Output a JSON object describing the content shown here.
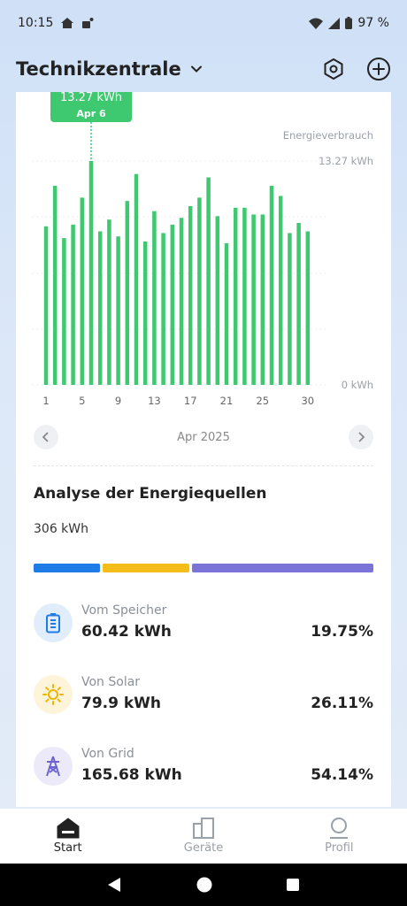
{
  "status_bar": {
    "time": "10:15",
    "battery": "97 %"
  },
  "header": {
    "title": "Technikzentrale"
  },
  "chart_data": {
    "type": "bar",
    "title": "",
    "series_label": "Energieverbrauch",
    "ylabel": "",
    "xlabel": "",
    "unit": "kWh",
    "x": [
      1,
      2,
      3,
      4,
      5,
      6,
      7,
      8,
      9,
      10,
      11,
      12,
      13,
      14,
      15,
      16,
      17,
      18,
      19,
      20,
      21,
      22,
      23,
      24,
      25,
      26,
      27,
      28,
      29,
      30
    ],
    "values": [
      9.4,
      11.8,
      8.7,
      9.5,
      11.1,
      13.27,
      9.1,
      9.8,
      8.8,
      10.9,
      12.5,
      8.5,
      10.3,
      9.0,
      9.5,
      9.9,
      10.6,
      11.1,
      12.3,
      10.0,
      8.4,
      10.5,
      10.5,
      10.1,
      10.1,
      11.8,
      11.2,
      9.0,
      9.6,
      9.1
    ],
    "x_ticks": [
      "1",
      "5",
      "9",
      "13",
      "17",
      "21",
      "25",
      "30"
    ],
    "y_ticks": [
      "0 kWh",
      "13.27 kWh"
    ],
    "ylim": [
      0,
      13.27
    ],
    "grid": true,
    "tooltip": {
      "value": "13.27 kWh",
      "date": "Apr 6"
    },
    "color": "#3ec86f"
  },
  "month_nav": {
    "label": "Apr 2025"
  },
  "analysis": {
    "title": "Analyse der Energiequellen",
    "total": "306 kWh",
    "sources": [
      {
        "name": "Vom Speicher",
        "value": "60.42 kWh",
        "percent": "19.75%",
        "share": 19.75,
        "color": "#1e7be8",
        "icon": "battery-icon",
        "icon_bg": "#e2edfb"
      },
      {
        "name": "Von Solar",
        "value": "79.9 kWh",
        "percent": "26.11%",
        "share": 26.11,
        "color": "#f4bd19",
        "icon": "sun-icon",
        "icon_bg": "#fdf4d9"
      },
      {
        "name": "Von Grid",
        "value": "165.68 kWh",
        "percent": "54.14%",
        "share": 54.14,
        "color": "#7b73d8",
        "icon": "grid-tower-icon",
        "icon_bg": "#ece9f8"
      }
    ]
  },
  "bottom_nav": [
    {
      "label": "Start",
      "icon": "home-icon",
      "active": true
    },
    {
      "label": "Geräte",
      "icon": "devices-icon",
      "active": false
    },
    {
      "label": "Profil",
      "icon": "profile-icon",
      "active": false
    }
  ]
}
